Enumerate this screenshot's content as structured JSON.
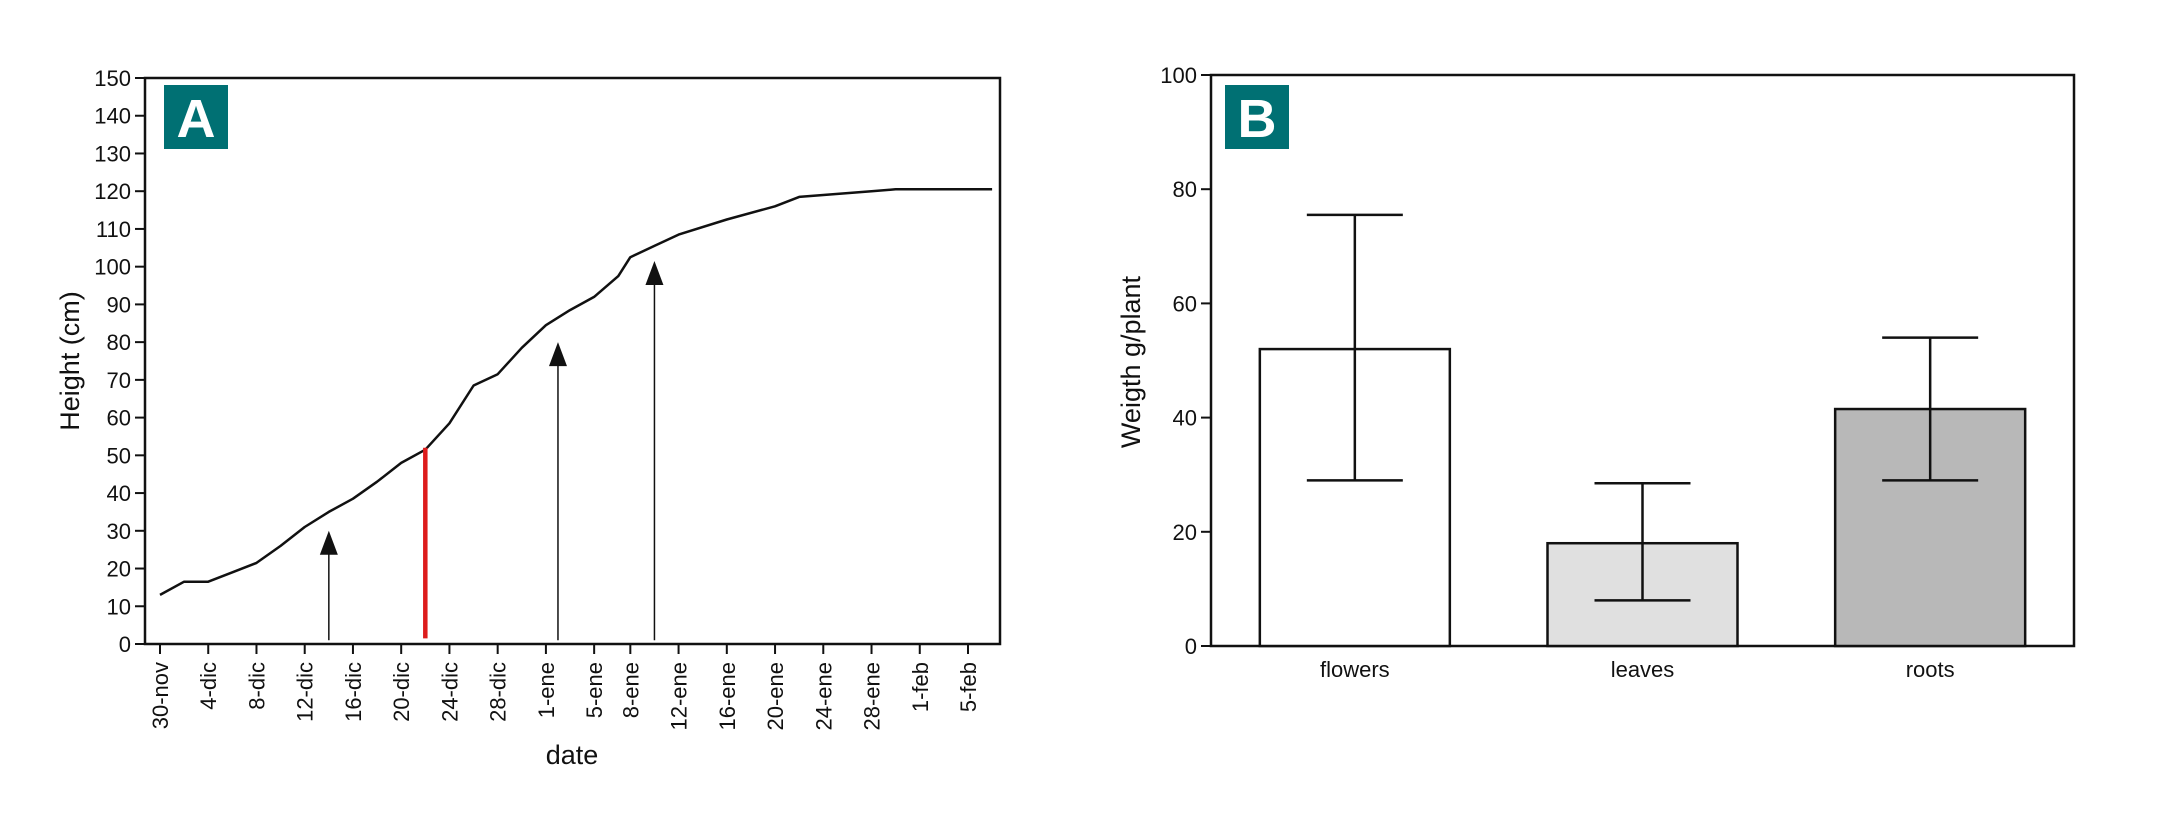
{
  "chart_data": [
    {
      "type": "line",
      "panel_label": "A",
      "xlabel": "date",
      "ylabel": "Height (cm)",
      "ylim": [
        0,
        150
      ],
      "yticks": [
        0,
        10,
        20,
        30,
        40,
        50,
        60,
        70,
        80,
        90,
        100,
        110,
        120,
        130,
        140,
        150
      ],
      "xticks": [
        "30-nov",
        "4-dic",
        "8-dic",
        "12-dic",
        "16-dic",
        "20-dic",
        "24-dic",
        "28-dic",
        "1-ene",
        "5-ene",
        "8-ene",
        "12-ene",
        "16-ene",
        "20-ene",
        "24-ene",
        "28-ene",
        "1-feb",
        "5-feb"
      ],
      "grid": false,
      "series": [
        {
          "color": "#111111",
          "points": [
            {
              "x": "30-nov",
              "y": 13
            },
            {
              "x": "2-dic",
              "y": 16.5
            },
            {
              "x": "4-dic",
              "y": 16.5
            },
            {
              "x": "6-dic",
              "y": 19
            },
            {
              "x": "8-dic",
              "y": 21.5
            },
            {
              "x": "10-dic",
              "y": 26
            },
            {
              "x": "12-dic",
              "y": 31
            },
            {
              "x": "14-dic",
              "y": 35
            },
            {
              "x": "16-dic",
              "y": 38.5
            },
            {
              "x": "18-dic",
              "y": 43
            },
            {
              "x": "20-dic",
              "y": 48
            },
            {
              "x": "22-dic",
              "y": 51.5
            },
            {
              "x": "24-dic",
              "y": 58.5
            },
            {
              "x": "26-dic",
              "y": 68.5
            },
            {
              "x": "28-dic",
              "y": 71.5
            },
            {
              "x": "30-dic",
              "y": 78.5
            },
            {
              "x": "1-ene",
              "y": 84.5
            },
            {
              "x": "3-ene",
              "y": 88.5
            },
            {
              "x": "5-ene",
              "y": 92
            },
            {
              "x": "7-ene",
              "y": 97.5
            },
            {
              "x": "8-ene",
              "y": 102.5
            },
            {
              "x": "10-ene",
              "y": 105.5
            },
            {
              "x": "12-ene",
              "y": 108.5
            },
            {
              "x": "16-ene",
              "y": 112.5
            },
            {
              "x": "20-ene",
              "y": 116
            },
            {
              "x": "22-ene",
              "y": 118.5
            },
            {
              "x": "24-ene",
              "y": 119
            },
            {
              "x": "28-ene",
              "y": 120
            },
            {
              "x": "30-ene",
              "y": 120.5
            },
            {
              "x": "1-feb",
              "y": 120.5
            },
            {
              "x": "5-feb",
              "y": 120.5
            },
            {
              "x": "7-feb",
              "y": 120.5
            }
          ]
        }
      ],
      "annotations": [
        {
          "kind": "arrow",
          "x": "14-dic",
          "y_from": 1,
          "y_to": 30,
          "color": "#111111"
        },
        {
          "kind": "marker-line",
          "x": "22-dic",
          "y_from": 1.5,
          "y_to": 52,
          "color": "#dd1c1c"
        },
        {
          "kind": "arrow",
          "x": "2-ene",
          "y_from": 1,
          "y_to": 80,
          "color": "#111111"
        },
        {
          "kind": "arrow",
          "x": "10-ene",
          "y_from": 1,
          "y_to": 101.5,
          "color": "#111111"
        }
      ],
      "label_color": "#007073"
    },
    {
      "type": "bar",
      "panel_label": "B",
      "xlabel": "",
      "ylabel": "Weigth g/plant",
      "ylim": [
        0,
        100
      ],
      "yticks": [
        0,
        20,
        40,
        60,
        80,
        100
      ],
      "grid": false,
      "categories": [
        "flowers",
        "leaves",
        "roots"
      ],
      "values": [
        52,
        18,
        41.5
      ],
      "error_low": [
        29,
        8,
        29
      ],
      "error_high": [
        75.5,
        28.5,
        54
      ],
      "bar_colors": [
        "#ffffff",
        "#e0e0e0",
        "#b8b8b8"
      ],
      "label_color": "#007073"
    }
  ]
}
